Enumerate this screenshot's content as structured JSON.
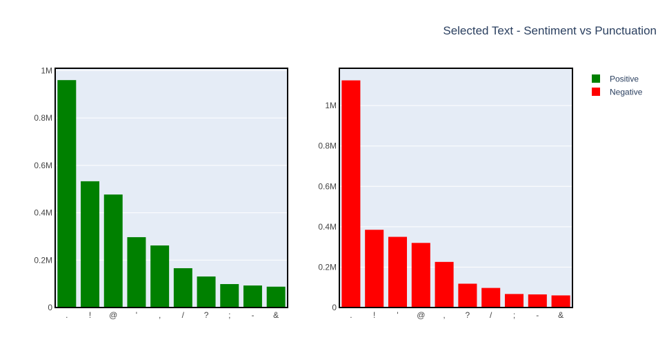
{
  "title": "Selected Text - Sentiment vs Punctuation",
  "chart_data": [
    {
      "type": "bar",
      "series": [
        {
          "name": "Positive",
          "color": "#008000",
          "values": [
            960000,
            533000,
            477000,
            297000,
            262000,
            166000,
            131000,
            99000,
            93000,
            88000
          ]
        }
      ],
      "categories": [
        ".",
        "!",
        "@",
        "'",
        ",",
        "/",
        "?",
        ";",
        "-",
        "&"
      ],
      "ylim": [
        0,
        1010000
      ],
      "yticks": [
        0,
        200000,
        400000,
        600000,
        800000,
        1000000
      ],
      "ytick_labels": [
        "0",
        "0.2M",
        "0.4M",
        "0.6M",
        "0.8M",
        "1M"
      ],
      "grid": true,
      "plot_bgcolor": "#e5ecf6"
    },
    {
      "type": "bar",
      "series": [
        {
          "name": "Negative",
          "color": "#ff0000",
          "values": [
            1125000,
            385000,
            350000,
            320000,
            226000,
            118000,
            97000,
            67000,
            65000,
            60000
          ]
        }
      ],
      "categories": [
        ".",
        "!",
        "'",
        "@",
        ",",
        "?",
        "/",
        ";",
        "-",
        "&"
      ],
      "ylim": [
        0,
        1185000
      ],
      "yticks": [
        0,
        200000,
        400000,
        600000,
        800000,
        1000000
      ],
      "ytick_labels": [
        "0",
        "0.2M",
        "0.4M",
        "0.6M",
        "0.8M",
        "1M"
      ],
      "grid": true,
      "plot_bgcolor": "#e5ecf6"
    }
  ],
  "legend": {
    "position": "top-right",
    "items": [
      {
        "label": "Positive",
        "color": "#008000"
      },
      {
        "label": "Negative",
        "color": "#ff0000"
      }
    ]
  }
}
